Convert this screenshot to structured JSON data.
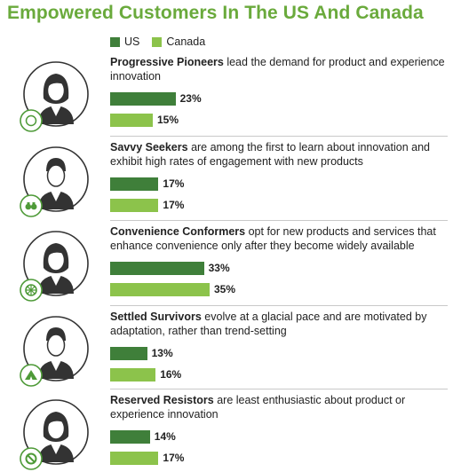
{
  "title": "Empowered Customers In The US And Canada",
  "legend": [
    {
      "label": "US",
      "color": "#3f7f3a"
    },
    {
      "label": "Canada",
      "color": "#8cc34b"
    }
  ],
  "chart_data": {
    "type": "bar",
    "title": "Empowered Customers In The US And Canada",
    "categories": [
      "Progressive Pioneers",
      "Savvy Seekers",
      "Convenience Conformers",
      "Settled Survivors",
      "Reserved Resistors"
    ],
    "series": [
      {
        "name": "US",
        "values": [
          23,
          17,
          33,
          13,
          14
        ],
        "color": "#3f7f3a"
      },
      {
        "name": "Canada",
        "values": [
          15,
          17,
          35,
          16,
          17
        ],
        "color": "#8cc34b"
      }
    ],
    "value_suffix": "%",
    "legend_position": "top-left"
  },
  "segments": [
    {
      "name": "Progressive Pioneers",
      "text": " lead the demand for product and experience innovation",
      "badge_icon": "compass-icon",
      "gender": "female",
      "us_label": "23%",
      "ca_label": "15%"
    },
    {
      "name": "Savvy Seekers",
      "text": " are among the first to learn about innovation and exhibit high rates of engagement with new products",
      "badge_icon": "binoculars-icon",
      "gender": "male",
      "us_label": "17%",
      "ca_label": "17%"
    },
    {
      "name": "Convenience Conformers",
      "text": " opt for new products and services that enhance convenience only after they become widely available",
      "badge_icon": "wheel-icon",
      "gender": "female",
      "us_label": "33%",
      "ca_label": "35%"
    },
    {
      "name": "Settled Survivors",
      "text": " evolve at a glacial pace and are motivated by adaptation, rather than trend-setting",
      "badge_icon": "tent-icon",
      "gender": "male",
      "us_label": "13%",
      "ca_label": "16%"
    },
    {
      "name": "Reserved Resistors",
      "text": " are least enthusiastic about product or experience innovation",
      "badge_icon": "prohibited-icon",
      "gender": "female",
      "us_label": "14%",
      "ca_label": "17%"
    }
  ]
}
